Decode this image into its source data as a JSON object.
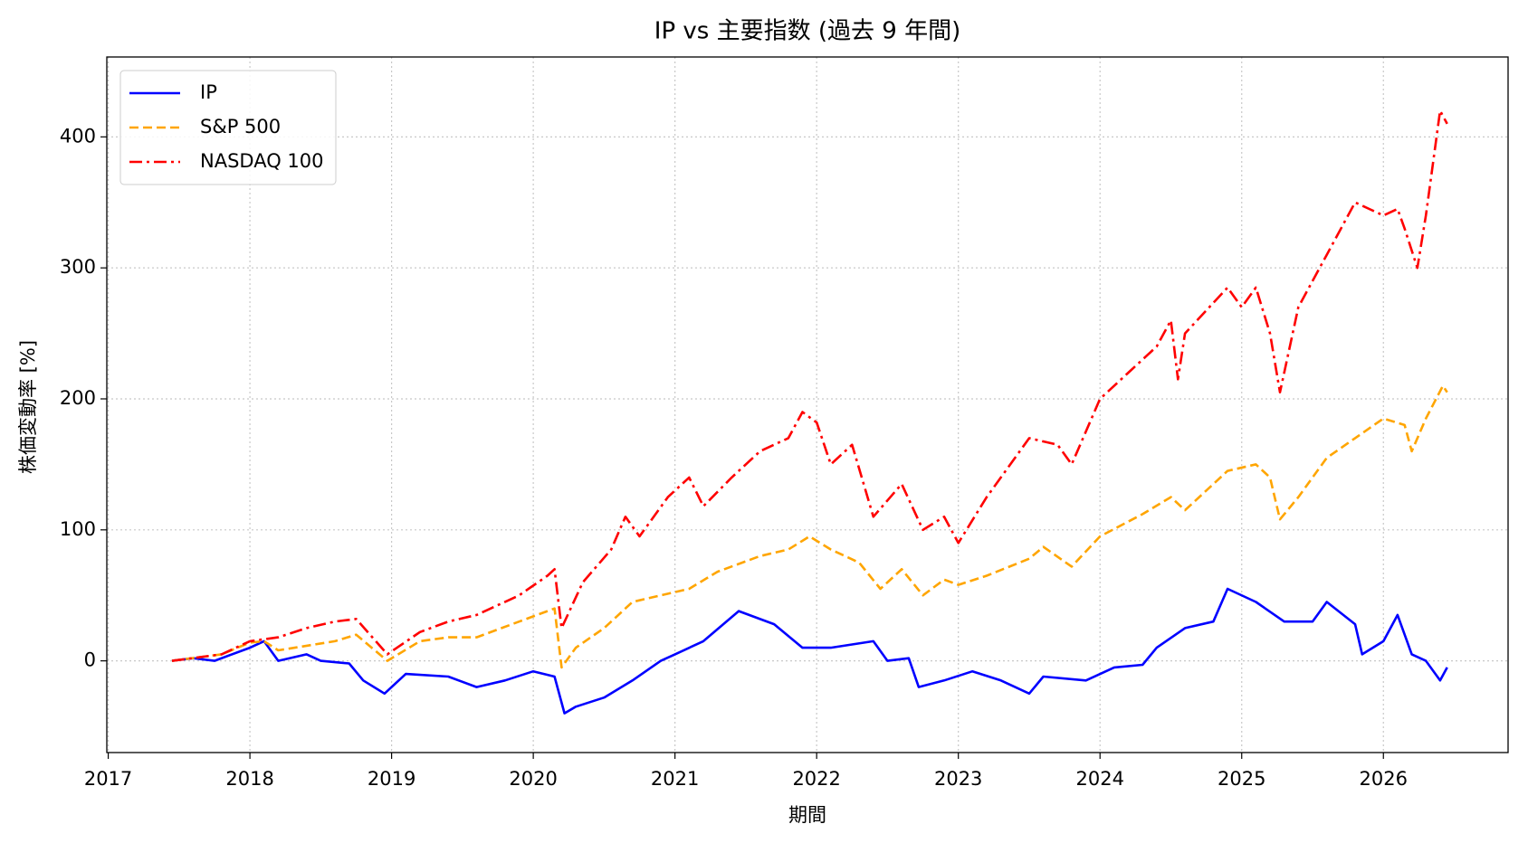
{
  "chart_data": {
    "type": "line",
    "title": "IP vs 主要指数 (過去 9 年間)",
    "x_label": "期間",
    "y_label": "株価変動率 [%]",
    "xlim": [
      2016.99,
      2026.88
    ],
    "xticks": [
      2017,
      2018,
      2019,
      2020,
      2021,
      2022,
      2023,
      2024,
      2025,
      2026
    ],
    "ylim": [
      -70,
      461
    ],
    "yticks": [
      0,
      100,
      200,
      300,
      400
    ],
    "grid": true,
    "legend": "upper left",
    "series": [
      {
        "name": "IP",
        "color": "#0000ff",
        "linestyle": "solid",
        "x": [
          2017.45,
          2017.6,
          2017.75,
          2018.0,
          2018.1,
          2018.2,
          2018.4,
          2018.5,
          2018.7,
          2018.8,
          2018.95,
          2019.1,
          2019.4,
          2019.6,
          2019.8,
          2020.0,
          2020.15,
          2020.22,
          2020.3,
          2020.5,
          2020.7,
          2020.9,
          2021.0,
          2021.2,
          2021.45,
          2021.7,
          2021.9,
          2022.1,
          2022.4,
          2022.5,
          2022.65,
          2022.72,
          2022.9,
          2023.1,
          2023.3,
          2023.5,
          2023.6,
          2023.9,
          2024.1,
          2024.3,
          2024.4,
          2024.6,
          2024.8,
          2024.9,
          2025.1,
          2025.3,
          2025.5,
          2025.6,
          2025.8,
          2025.85,
          2026.0,
          2026.1,
          2026.2,
          2026.3,
          2026.4,
          2026.45
        ],
        "values": [
          0,
          2,
          0,
          10,
          15,
          0,
          5,
          0,
          -2,
          -15,
          -25,
          -10,
          -12,
          -20,
          -15,
          -8,
          -12,
          -40,
          -35,
          -28,
          -15,
          0,
          5,
          15,
          38,
          28,
          10,
          10,
          15,
          0,
          2,
          -20,
          -15,
          -8,
          -15,
          -25,
          -12,
          -15,
          -5,
          -3,
          10,
          25,
          30,
          55,
          45,
          30,
          30,
          45,
          28,
          5,
          15,
          35,
          5,
          0,
          -15,
          -5
        ]
      },
      {
        "name": "S&P 500",
        "color": "#ffa500",
        "linestyle": "dashed",
        "x": [
          2017.45,
          2017.8,
          2018.0,
          2018.1,
          2018.2,
          2018.6,
          2018.75,
          2018.97,
          2019.2,
          2019.4,
          2019.6,
          2019.9,
          2020.1,
          2020.15,
          2020.2,
          2020.3,
          2020.5,
          2020.7,
          2020.9,
          2021.1,
          2021.3,
          2021.6,
          2021.8,
          2021.95,
          2022.1,
          2022.3,
          2022.45,
          2022.6,
          2022.75,
          2022.9,
          2023.0,
          2023.2,
          2023.5,
          2023.6,
          2023.8,
          2024.0,
          2024.3,
          2024.5,
          2024.6,
          2024.9,
          2025.1,
          2025.2,
          2025.27,
          2025.4,
          2025.6,
          2025.8,
          2026.0,
          2026.15,
          2026.2,
          2026.3,
          2026.42,
          2026.45
        ],
        "values": [
          0,
          5,
          14,
          15,
          8,
          15,
          20,
          0,
          15,
          18,
          18,
          30,
          38,
          40,
          -5,
          10,
          25,
          45,
          50,
          55,
          68,
          80,
          85,
          95,
          85,
          75,
          55,
          70,
          50,
          62,
          58,
          65,
          78,
          87,
          72,
          95,
          112,
          125,
          115,
          145,
          150,
          140,
          108,
          125,
          155,
          170,
          185,
          180,
          160,
          185,
          210,
          205
        ]
      },
      {
        "name": "NASDAQ 100",
        "color": "#ff0000",
        "linestyle": "dashdot",
        "x": [
          2017.45,
          2017.8,
          2018.0,
          2018.2,
          2018.4,
          2018.6,
          2018.75,
          2018.97,
          2019.2,
          2019.4,
          2019.6,
          2019.9,
          2020.1,
          2020.15,
          2020.2,
          2020.35,
          2020.55,
          2020.65,
          2020.75,
          2020.95,
          2021.1,
          2021.2,
          2021.4,
          2021.6,
          2021.8,
          2021.9,
          2022.0,
          2022.1,
          2022.25,
          2022.4,
          2022.6,
          2022.75,
          2022.9,
          2023.0,
          2023.2,
          2023.5,
          2023.7,
          2023.8,
          2024.0,
          2024.2,
          2024.4,
          2024.5,
          2024.55,
          2024.6,
          2024.9,
          2025.0,
          2025.1,
          2025.2,
          2025.27,
          2025.4,
          2025.6,
          2025.8,
          2025.9,
          2026.0,
          2026.1,
          2026.15,
          2026.24,
          2026.3,
          2026.4,
          2026.45
        ],
        "values": [
          0,
          5,
          15,
          18,
          25,
          30,
          32,
          5,
          22,
          30,
          35,
          50,
          65,
          70,
          25,
          60,
          85,
          110,
          95,
          125,
          140,
          118,
          140,
          160,
          170,
          190,
          182,
          150,
          165,
          110,
          135,
          100,
          110,
          90,
          125,
          170,
          165,
          150,
          200,
          220,
          240,
          260,
          215,
          250,
          285,
          270,
          285,
          250,
          205,
          270,
          310,
          350,
          345,
          340,
          345,
          330,
          300,
          340,
          420,
          410
        ]
      }
    ]
  }
}
